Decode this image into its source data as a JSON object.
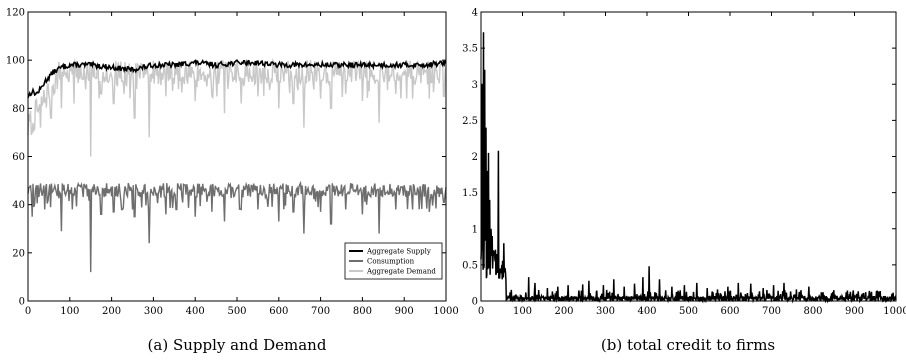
{
  "chart_data": [
    {
      "type": "line",
      "caption": "(a) Supply and Demand",
      "title": "",
      "xlabel": "",
      "ylabel": "",
      "xlim": [
        0,
        1000
      ],
      "ylim": [
        0,
        120
      ],
      "x_ticks": [
        0,
        100,
        200,
        300,
        400,
        500,
        600,
        700,
        800,
        900,
        1000
      ],
      "y_ticks": [
        0,
        20,
        40,
        60,
        80,
        100,
        120
      ],
      "grid": false,
      "legend_position": "bottom-right",
      "series": [
        {
          "name": "Aggregate Supply",
          "color": "#000000",
          "description": "starts near 85 and rises to about 97-100 after t=80, staying near 97-100 through t=1000",
          "x": [
            0,
            10,
            20,
            30,
            40,
            50,
            60,
            70,
            80,
            100,
            150,
            200,
            250,
            300,
            350,
            400,
            450,
            500,
            550,
            600,
            650,
            700,
            750,
            800,
            850,
            900,
            950,
            1000
          ],
          "values": [
            85,
            87,
            86,
            88,
            91,
            93,
            95,
            96,
            97,
            98,
            98,
            97,
            96,
            98,
            98,
            99,
            98,
            99,
            99,
            98,
            98,
            98,
            98,
            98,
            98,
            98,
            98,
            99
          ]
        },
        {
          "name": "Consumption",
          "color": "#6e6e6e",
          "description": "baseline around 45-49 with frequent downward spikes to 30-40; deepest dip to about 12 near t=150",
          "baseline": 48,
          "range": [
            43,
            49
          ],
          "dips": [
            [
              10,
              35
            ],
            [
              40,
              38
            ],
            [
              80,
              29
            ],
            [
              150,
              12
            ],
            [
              175,
              36
            ],
            [
              205,
              37
            ],
            [
              225,
              38
            ],
            [
              255,
              35
            ],
            [
              290,
              24
            ],
            [
              330,
              36
            ],
            [
              355,
              38
            ],
            [
              400,
              35
            ],
            [
              440,
              37
            ],
            [
              470,
              33
            ],
            [
              510,
              38
            ],
            [
              550,
              38
            ],
            [
              600,
              33
            ],
            [
              635,
              37
            ],
            [
              660,
              28
            ],
            [
              700,
              37
            ],
            [
              725,
              32
            ],
            [
              760,
              38
            ],
            [
              800,
              36
            ],
            [
              840,
              28
            ],
            [
              880,
              38
            ],
            [
              920,
              38
            ],
            [
              960,
              37
            ],
            [
              995,
              41
            ]
          ]
        },
        {
          "name": "Aggregate Demand",
          "color": "#c8c8c8",
          "description": "starts near 70-82, rises to about 97-100 after t=80 with frequent downward spikes to 80-90; deepest dip to about 60 near t=150",
          "baseline": 97,
          "range": [
            90,
            100
          ],
          "dips": [
            [
              10,
              70
            ],
            [
              30,
              72
            ],
            [
              55,
              76
            ],
            [
              80,
              80
            ],
            [
              110,
              82
            ],
            [
              150,
              60
            ],
            [
              175,
              86
            ],
            [
              205,
              82
            ],
            [
              230,
              86
            ],
            [
              255,
              76
            ],
            [
              290,
              68
            ],
            [
              330,
              85
            ],
            [
              360,
              88
            ],
            [
              400,
              83
            ],
            [
              440,
              85
            ],
            [
              470,
              78
            ],
            [
              510,
              82
            ],
            [
              550,
              85
            ],
            [
              600,
              80
            ],
            [
              635,
              82
            ],
            [
              660,
              72
            ],
            [
              700,
              84
            ],
            [
              725,
              80
            ],
            [
              760,
              86
            ],
            [
              800,
              83
            ],
            [
              840,
              74
            ],
            [
              880,
              86
            ],
            [
              920,
              84
            ],
            [
              960,
              84
            ],
            [
              995,
              85
            ]
          ]
        }
      ]
    },
    {
      "type": "line",
      "caption": "(b) total credit to firms",
      "title": "",
      "xlabel": "",
      "ylabel": "",
      "xlim": [
        0,
        1000
      ],
      "ylim": [
        0,
        4
      ],
      "x_ticks": [
        0,
        100,
        200,
        300,
        400,
        500,
        600,
        700,
        800,
        900,
        1000
      ],
      "y_ticks": [
        0,
        0.5,
        1,
        1.5,
        2,
        2.5,
        3,
        3.5,
        4
      ],
      "grid": false,
      "series": [
        {
          "color": "#000000",
          "description": "large spikes at the start (peak about 3.7 near t=5), decaying quickly; small noisy values below 0.5 after t=60",
          "spikes": [
            [
              3,
              3.0
            ],
            [
              6,
              3.72
            ],
            [
              9,
              3.2
            ],
            [
              12,
              2.4
            ],
            [
              15,
              1.8
            ],
            [
              18,
              2.05
            ],
            [
              21,
              1.4
            ],
            [
              24,
              1.0
            ],
            [
              27,
              0.9
            ],
            [
              30,
              0.7
            ],
            [
              34,
              0.55
            ],
            [
              38,
              0.65
            ],
            [
              42,
              2.08
            ],
            [
              46,
              0.45
            ],
            [
              50,
              0.5
            ],
            [
              55,
              0.8
            ],
            [
              60,
              0.3
            ],
            [
              70,
              0.12
            ],
            [
              115,
              0.33
            ],
            [
              130,
              0.25
            ],
            [
              160,
              0.18
            ],
            [
              185,
              0.2
            ],
            [
              210,
              0.22
            ],
            [
              245,
              0.23
            ],
            [
              260,
              0.28
            ],
            [
              295,
              0.22
            ],
            [
              320,
              0.3
            ],
            [
              345,
              0.2
            ],
            [
              370,
              0.24
            ],
            [
              390,
              0.33
            ],
            [
              405,
              0.48
            ],
            [
              430,
              0.3
            ],
            [
              460,
              0.2
            ],
            [
              490,
              0.22
            ],
            [
              520,
              0.25
            ],
            [
              545,
              0.18
            ],
            [
              570,
              0.16
            ],
            [
              595,
              0.2
            ],
            [
              620,
              0.25
            ],
            [
              650,
              0.24
            ],
            [
              680,
              0.18
            ],
            [
              705,
              0.22
            ],
            [
              730,
              0.25
            ],
            [
              760,
              0.16
            ],
            [
              790,
              0.2
            ],
            [
              820,
              0.12
            ],
            [
              850,
              0.15
            ],
            [
              880,
              0.12
            ],
            [
              905,
              0.1
            ],
            [
              935,
              0.08
            ],
            [
              960,
              0.08
            ],
            [
              990,
              0.1
            ]
          ],
          "noise_level": 0.07
        }
      ]
    }
  ]
}
